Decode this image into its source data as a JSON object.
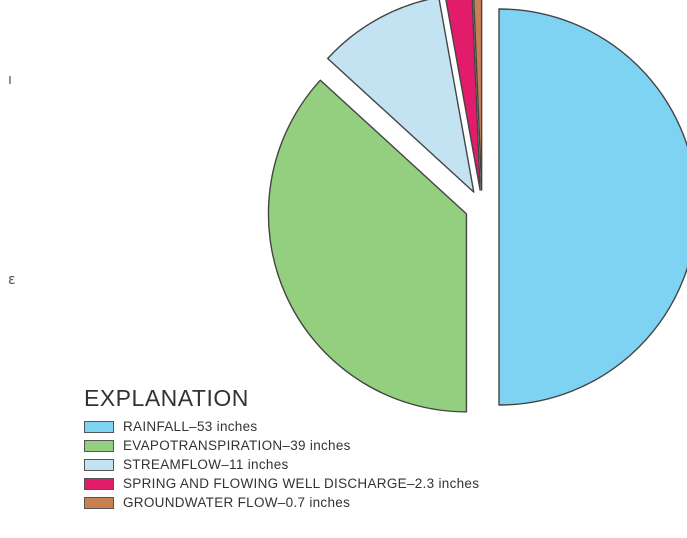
{
  "side_marks": [
    "ı",
    "ɛ"
  ],
  "chart_data": {
    "type": "pie",
    "legend_title": "EXPLANATION",
    "legend_position": "bottom-left",
    "unit": "inches",
    "slices": [
      {
        "category": "RAINFALL",
        "value": 53,
        "label": "RAINFALL–53 inches",
        "color": "#7fd3f2"
      },
      {
        "category": "EVAPOTRANSPIRATION",
        "value": 39,
        "label": "EVAPOTRANSPIRATION–39 inches",
        "color": "#93cf7e"
      },
      {
        "category": "STREAMFLOW",
        "value": 11,
        "label": "STREAMFLOW–11 inches",
        "color": "#c3e3f3"
      },
      {
        "category": "SPRING AND FLOWING WELL DISCHARGE",
        "value": 2.3,
        "label": "SPRING AND FLOWING WELL DISCHARGE–2.3 inches",
        "color": "#e21c6b"
      },
      {
        "category": "GROUNDWATER FLOW",
        "value": 0.7,
        "label": "GROUNDWATER FLOW–0.7 inches",
        "color": "#c88052"
      }
    ]
  }
}
